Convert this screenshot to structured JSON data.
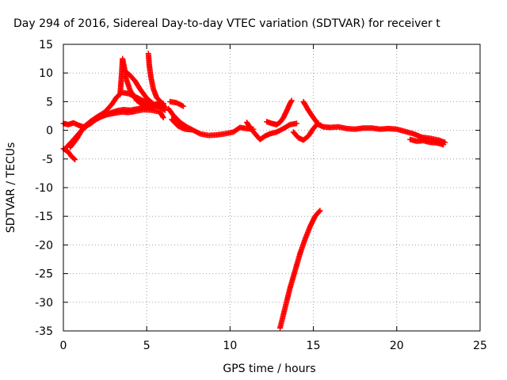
{
  "chart_data": {
    "type": "scatter",
    "title": "Day 294 of 2016, Sidereal Day-to-day VTEC variation (SDTVAR) for receiver t",
    "xlabel": "GPS time / hours",
    "ylabel": "SDTVAR / TECUs",
    "xlim": [
      0,
      25
    ],
    "ylim": [
      -35,
      15
    ],
    "xticks": [
      "0",
      "5",
      "10",
      "15",
      "20",
      "25"
    ],
    "yticks": [
      "15",
      "10",
      "5",
      "0",
      "-5",
      "-10",
      "-15",
      "-20",
      "-25",
      "-30",
      "-35"
    ],
    "grid": true,
    "marker": "+",
    "color": "#ff0000",
    "series": [
      {
        "points": [
          [
            0,
            1.2
          ],
          [
            0.3,
            1.0
          ],
          [
            0.6,
            1.3
          ],
          [
            0.9,
            0.9
          ],
          [
            1.2,
            0.6
          ],
          [
            1.6,
            1.1
          ],
          [
            2.0,
            2.0
          ],
          [
            2.4,
            2.6
          ],
          [
            2.8,
            3.0
          ],
          [
            3.2,
            3.4
          ],
          [
            3.6,
            3.6
          ],
          [
            4.0,
            3.5
          ],
          [
            4.4,
            3.7
          ],
          [
            4.8,
            4.0
          ],
          [
            5.2,
            4.3
          ],
          [
            5.6,
            4.6
          ],
          [
            6.0,
            4.7
          ]
        ]
      },
      {
        "points": [
          [
            0,
            -3.2
          ],
          [
            0.3,
            -3.8
          ],
          [
            0.5,
            -4.6
          ],
          [
            0.7,
            -5.1
          ]
        ]
      },
      {
        "points": [
          [
            0.2,
            -2.9
          ],
          [
            0.5,
            -2.0
          ],
          [
            0.8,
            -1.0
          ],
          [
            1.1,
            0
          ],
          [
            1.5,
            1.0
          ],
          [
            1.9,
            1.8
          ],
          [
            2.3,
            2.4
          ],
          [
            2.7,
            2.8
          ],
          [
            3.1,
            3.0
          ],
          [
            3.5,
            3.2
          ],
          [
            3.9,
            3.1
          ],
          [
            4.3,
            3.3
          ],
          [
            4.8,
            3.6
          ],
          [
            5.3,
            3.5
          ],
          [
            5.8,
            3.2
          ],
          [
            6.0,
            2.2
          ]
        ]
      },
      {
        "points": [
          [
            0.4,
            -3.0
          ],
          [
            0.8,
            -1.5
          ],
          [
            1.2,
            0.5
          ],
          [
            1.6,
            1.5
          ],
          [
            2.0,
            2.3
          ],
          [
            2.5,
            3.2
          ],
          [
            2.9,
            4.5
          ],
          [
            3.2,
            5.8
          ],
          [
            3.5,
            6.6
          ],
          [
            3.9,
            6.4
          ],
          [
            4.3,
            5.9
          ],
          [
            4.7,
            5.3
          ],
          [
            5.1,
            4.6
          ],
          [
            5.5,
            4.4
          ],
          [
            5.9,
            4.2
          ]
        ]
      },
      {
        "points": [
          [
            3.4,
            6.2
          ],
          [
            3.45,
            8.0
          ],
          [
            3.5,
            10.0
          ],
          [
            3.55,
            12.5
          ],
          [
            3.7,
            10.3
          ],
          [
            4.0,
            9.6
          ],
          [
            4.3,
            8.6
          ],
          [
            4.6,
            7.2
          ],
          [
            5.0,
            5.6
          ],
          [
            5.4,
            4.6
          ],
          [
            5.8,
            4.0
          ],
          [
            6.1,
            3.5
          ]
        ]
      },
      {
        "points": [
          [
            3.7,
            9.6
          ],
          [
            4.0,
            7.0
          ],
          [
            4.4,
            5.2
          ],
          [
            4.8,
            4.4
          ],
          [
            5.2,
            4.0
          ],
          [
            5.6,
            4.2
          ],
          [
            6.0,
            4.5
          ]
        ]
      },
      {
        "points": [
          [
            5.1,
            13.4
          ],
          [
            5.15,
            11.5
          ],
          [
            5.25,
            9.3
          ],
          [
            5.4,
            7.2
          ],
          [
            5.6,
            5.7
          ],
          [
            5.9,
            4.8
          ],
          [
            6.1,
            4.0
          ]
        ]
      },
      {
        "points": [
          [
            6.4,
            5.0
          ],
          [
            6.8,
            4.8
          ],
          [
            7.2,
            4.2
          ]
        ]
      },
      {
        "points": [
          [
            6.3,
            3.8
          ],
          [
            6.6,
            2.6
          ],
          [
            7.0,
            1.4
          ],
          [
            7.4,
            0.6
          ],
          [
            7.8,
            0
          ],
          [
            8.2,
            -0.6
          ],
          [
            8.7,
            -0.9
          ],
          [
            9.2,
            -0.8
          ],
          [
            9.7,
            -0.6
          ],
          [
            10.2,
            -0.3
          ],
          [
            10.6,
            0.5
          ],
          [
            11.0,
            0.3
          ],
          [
            11.4,
            0.2
          ]
        ]
      },
      {
        "points": [
          [
            6.5,
            1.9
          ],
          [
            6.9,
            0.7
          ],
          [
            7.3,
            0.2
          ],
          [
            7.7,
            0.1
          ]
        ]
      },
      {
        "points": [
          [
            11.0,
            1.4
          ],
          [
            11.2,
            0.5
          ],
          [
            11.5,
            -0.6
          ],
          [
            11.8,
            -1.6
          ],
          [
            12.1,
            -1.0
          ],
          [
            12.4,
            -0.6
          ],
          [
            12.8,
            -0.3
          ],
          [
            13.2,
            0.3
          ],
          [
            13.6,
            1.0
          ],
          [
            14.0,
            1.2
          ]
        ]
      },
      {
        "points": [
          [
            12.2,
            1.5
          ],
          [
            12.5,
            1.2
          ],
          [
            12.8,
            1.0
          ],
          [
            13.0,
            1.4
          ],
          [
            13.2,
            2.2
          ],
          [
            13.4,
            3.4
          ],
          [
            13.6,
            4.7
          ],
          [
            13.7,
            5.2
          ]
        ]
      },
      {
        "points": [
          [
            13.8,
            -0.3
          ],
          [
            14.1,
            -1.3
          ],
          [
            14.4,
            -1.7
          ],
          [
            14.7,
            -1.0
          ],
          [
            15.0,
            0.3
          ],
          [
            15.3,
            1.3
          ]
        ]
      },
      {
        "points": [
          [
            14.4,
            5.0
          ],
          [
            14.7,
            3.5
          ],
          [
            15.0,
            2.2
          ],
          [
            15.3,
            1.0
          ],
          [
            15.6,
            0.6
          ],
          [
            16.0,
            0.5
          ],
          [
            16.5,
            0.6
          ],
          [
            17.0,
            0.3
          ],
          [
            17.5,
            0.2
          ],
          [
            18.0,
            0.4
          ],
          [
            18.5,
            0.4
          ],
          [
            19.0,
            0.2
          ],
          [
            19.5,
            0.3
          ],
          [
            20.0,
            0.2
          ],
          [
            20.5,
            -0.2
          ],
          [
            21.0,
            -0.6
          ],
          [
            21.5,
            -1.2
          ],
          [
            22.0,
            -1.4
          ],
          [
            22.5,
            -1.7
          ],
          [
            22.9,
            -2.1
          ]
        ]
      },
      {
        "points": [
          [
            20.8,
            -1.6
          ],
          [
            21.2,
            -1.9
          ],
          [
            21.6,
            -1.8
          ],
          [
            22.0,
            -2.1
          ],
          [
            22.4,
            -2.2
          ],
          [
            22.8,
            -2.5
          ]
        ]
      },
      {
        "points": [
          [
            13.0,
            -34.5
          ],
          [
            13.3,
            -31.0
          ],
          [
            13.6,
            -27.5
          ],
          [
            13.9,
            -24.5
          ],
          [
            14.2,
            -21.5
          ],
          [
            14.5,
            -19.0
          ],
          [
            14.8,
            -16.8
          ],
          [
            15.1,
            -15.0
          ],
          [
            15.4,
            -14.0
          ]
        ]
      }
    ]
  }
}
